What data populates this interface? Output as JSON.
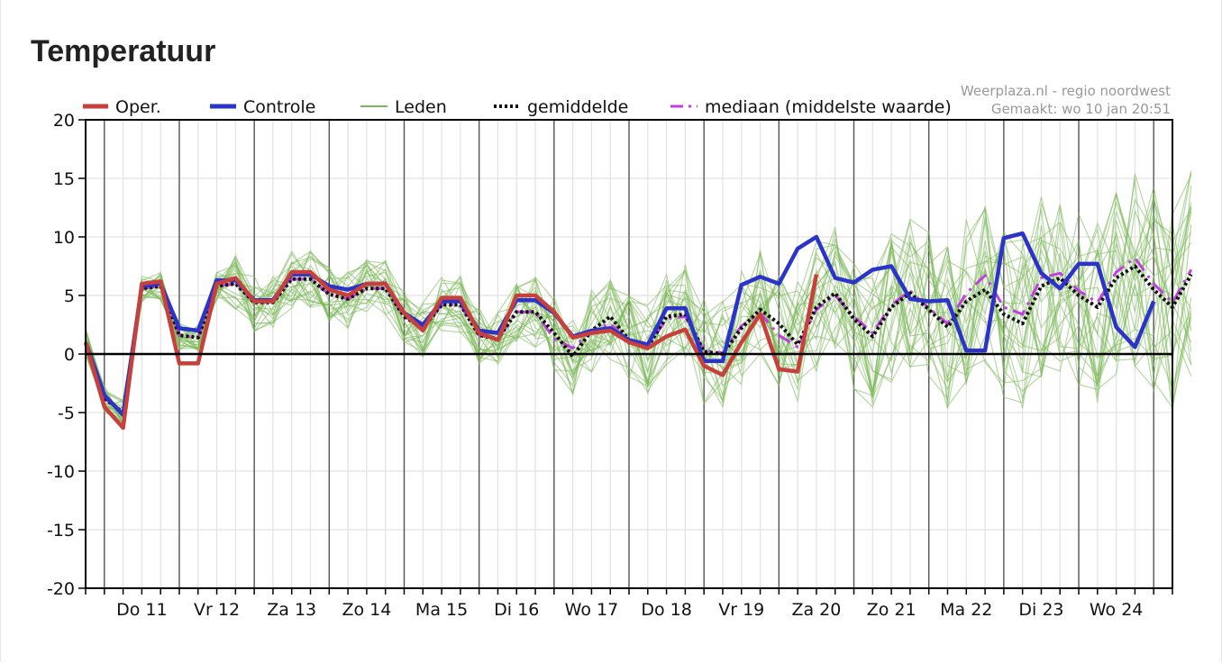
{
  "page": {
    "title": "Temperatuur"
  },
  "credit": {
    "line1": "Weerplaza.nl - regio noordwest",
    "line2": "Gemaakt: wo 10 jan 20:51"
  },
  "colors": {
    "oper": "#c8403c",
    "controle": "#2b33c8",
    "leden": "#7cb85a",
    "gemiddelde": "#111111",
    "mediaan": "#c040e0",
    "grid": "#e2e2e2",
    "daygrid": "#555555"
  },
  "chart_data": {
    "type": "line",
    "title": "Temperatuur",
    "ylim": [
      -20,
      20
    ],
    "yticks": [
      20,
      15,
      10,
      5,
      0,
      -5,
      -10,
      -15,
      -20
    ],
    "x_range": [
      0,
      58
    ],
    "day_separators": [
      1,
      5,
      9,
      13,
      17,
      21,
      25,
      29,
      33,
      37,
      41,
      45,
      49,
      53,
      57
    ],
    "day_labels": [
      "Do 11",
      "Vr 12",
      "Za 13",
      "Zo 14",
      "Ma 15",
      "Di 16",
      "Wo 17",
      "Do 18",
      "Vr 19",
      "Za 20",
      "Zo 21",
      "Ma 22",
      "Di 23",
      "Wo 24"
    ],
    "legend": [
      "Oper.",
      "Controle",
      "Leden",
      "gemiddelde",
      "mediaan (middelste waarde)"
    ],
    "grid": true,
    "series": [
      {
        "name": "Oper.",
        "values": [
          1,
          -4.5,
          -6.3,
          6.0,
          6.2,
          -0.8,
          -0.8,
          6.0,
          6.5,
          4.5,
          4.5,
          7.0,
          7.0,
          5.5,
          5.0,
          6.0,
          6.0,
          3.5,
          2.0,
          4.8,
          4.8,
          1.8,
          1.2,
          5.0,
          5.0,
          3.6,
          1.4,
          1.8,
          2.0,
          1.0,
          0.5,
          1.5,
          2.1,
          -1.0,
          -1.8,
          1.0,
          3.4,
          -1.3,
          -1.5,
          6.8
        ]
      },
      {
        "name": "Controle",
        "values": [
          1,
          -3.5,
          -5.2,
          5.8,
          6.0,
          2.2,
          2.0,
          6.3,
          6.3,
          4.6,
          4.6,
          6.8,
          6.8,
          5.8,
          5.5,
          6.0,
          6.0,
          3.5,
          2.5,
          4.5,
          4.5,
          2.0,
          1.8,
          4.6,
          4.6,
          3.5,
          1.5,
          2.0,
          2.2,
          1.2,
          0.8,
          3.9,
          3.9,
          -0.6,
          -0.6,
          5.9,
          6.6,
          6.0,
          9.0,
          10.0,
          6.5,
          6.1,
          7.2,
          7.5,
          4.7,
          4.5,
          4.6,
          0.3,
          0.3,
          9.9,
          10.3,
          6.9,
          5.6,
          7.7,
          7.7,
          2.3,
          0.6,
          4.5
        ]
      },
      {
        "name": "gemiddelde",
        "values": [
          1,
          -3.8,
          -5.0,
          5.6,
          5.8,
          1.6,
          1.4,
          5.8,
          6.0,
          4.4,
          4.4,
          6.4,
          6.4,
          5.1,
          4.7,
          5.6,
          5.6,
          3.2,
          2.2,
          4.2,
          4.2,
          1.6,
          1.3,
          3.6,
          3.6,
          1.8,
          -0.2,
          2.0,
          3.2,
          1.2,
          0.6,
          3.2,
          3.4,
          0.2,
          0.0,
          2.2,
          3.8,
          2.6,
          0.8,
          4.0,
          5.2,
          3.0,
          1.5,
          4.0,
          5.2,
          3.8,
          2.3,
          4.5,
          5.5,
          3.4,
          2.6,
          5.8,
          6.5,
          5.0,
          4.0,
          6.5,
          7.5,
          5.5,
          4.0,
          6.8
        ]
      },
      {
        "name": "mediaan (middelste waarde)",
        "values": [
          1,
          -3.8,
          -5.0,
          5.6,
          5.8,
          1.6,
          1.4,
          5.8,
          6.0,
          4.4,
          4.4,
          6.4,
          6.4,
          5.1,
          4.7,
          5.6,
          5.6,
          3.2,
          2.2,
          4.2,
          4.2,
          1.6,
          1.3,
          3.6,
          3.6,
          1.3,
          0.5,
          2.0,
          2.6,
          1.0,
          0.6,
          3.0,
          3.2,
          0.3,
          0.1,
          2.4,
          3.5,
          1.6,
          0.6,
          3.8,
          5.0,
          3.2,
          1.8,
          4.2,
          5.4,
          3.9,
          2.6,
          5.2,
          6.7,
          4.0,
          3.4,
          6.5,
          6.9,
          5.4,
          4.4,
          7.0,
          8.2,
          6.0,
          4.4,
          7.2
        ]
      }
    ]
  }
}
